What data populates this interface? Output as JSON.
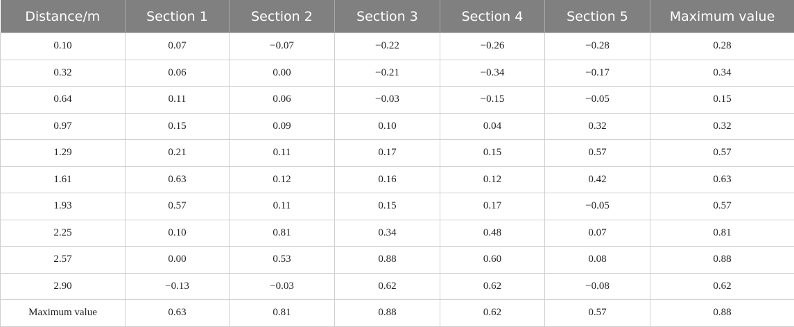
{
  "table": {
    "header": [
      "Distance/m",
      "Section 1",
      "Section 2",
      "Section 3",
      "Section 4",
      "Section 5",
      "Maximum value"
    ],
    "rows": [
      [
        "0.10",
        "0.07",
        "−0.07",
        "−0.22",
        "−0.26",
        "−0.28",
        "0.28"
      ],
      [
        "0.32",
        "0.06",
        "0.00",
        "−0.21",
        "−0.34",
        "−0.17",
        "0.34"
      ],
      [
        "0.64",
        "0.11",
        "0.06",
        "−0.03",
        "−0.15",
        "−0.05",
        "0.15"
      ],
      [
        "0.97",
        "0.15",
        "0.09",
        "0.10",
        "0.04",
        "0.32",
        "0.32"
      ],
      [
        "1.29",
        "0.21",
        "0.11",
        "0.17",
        "0.15",
        "0.57",
        "0.57"
      ],
      [
        "1.61",
        "0.63",
        "0.12",
        "0.16",
        "0.12",
        "0.42",
        "0.63"
      ],
      [
        "1.93",
        "0.57",
        "0.11",
        "0.15",
        "0.17",
        "−0.05",
        "0.57"
      ],
      [
        "2.25",
        "0.10",
        "0.81",
        "0.34",
        "0.48",
        "0.07",
        "0.81"
      ],
      [
        "2.57",
        "0.00",
        "0.53",
        "0.88",
        "0.60",
        "0.08",
        "0.88"
      ],
      [
        "2.90",
        "−0.13",
        "−0.03",
        "0.62",
        "0.62",
        "−0.08",
        "0.62"
      ],
      [
        "Maximum value",
        "0.63",
        "0.81",
        "0.88",
        "0.62",
        "0.57",
        "0.88"
      ]
    ]
  }
}
